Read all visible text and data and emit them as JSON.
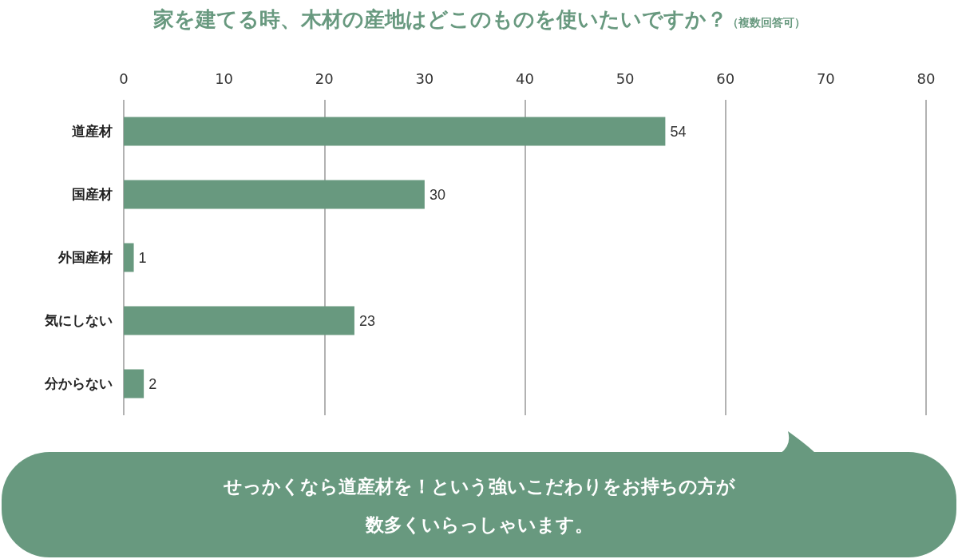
{
  "chart_data": {
    "type": "bar",
    "orientation": "horizontal",
    "title": "家を建てる時、木材の産地はどこのものを使いたいですか？",
    "subtitle": "（複数回答可）",
    "categories": [
      "道産材",
      "国産材",
      "外国産材",
      "気にしない",
      "分からない"
    ],
    "values": [
      54,
      30,
      1,
      23,
      2
    ],
    "color": "#68997f",
    "xlim": [
      0,
      80
    ],
    "xticks": [
      0,
      10,
      20,
      30,
      40,
      50,
      60,
      70,
      80
    ],
    "grid": "x",
    "data_labels": true,
    "annotations": [
      "せっかくなら道産材を！という強いこだわりをお持ちの方が",
      "数多くいらっしゃいます。"
    ]
  }
}
